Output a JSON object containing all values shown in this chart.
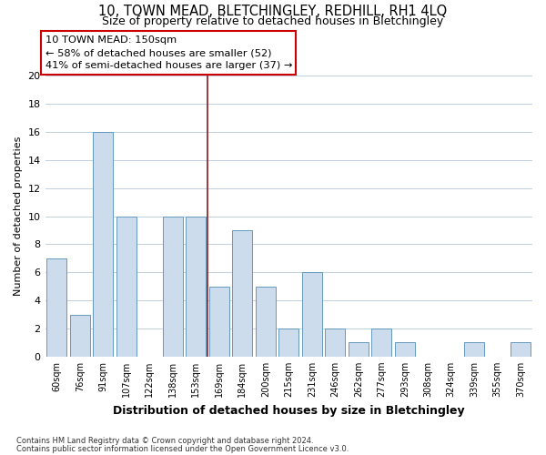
{
  "title": "10, TOWN MEAD, BLETCHINGLEY, REDHILL, RH1 4LQ",
  "subtitle": "Size of property relative to detached houses in Bletchingley",
  "xlabel": "Distribution of detached houses by size in Bletchingley",
  "ylabel": "Number of detached properties",
  "bar_color": "#ccdcec",
  "bar_edgecolor": "#6699bb",
  "categories": [
    "60sqm",
    "76sqm",
    "91sqm",
    "107sqm",
    "122sqm",
    "138sqm",
    "153sqm",
    "169sqm",
    "184sqm",
    "200sqm",
    "215sqm",
    "231sqm",
    "246sqm",
    "262sqm",
    "277sqm",
    "293sqm",
    "308sqm",
    "324sqm",
    "339sqm",
    "355sqm",
    "370sqm"
  ],
  "values": [
    7,
    3,
    16,
    10,
    0,
    10,
    10,
    5,
    9,
    5,
    2,
    6,
    2,
    1,
    2,
    1,
    0,
    0,
    1,
    0,
    1
  ],
  "ylim": [
    0,
    20
  ],
  "yticks": [
    0,
    2,
    4,
    6,
    8,
    10,
    12,
    14,
    16,
    18,
    20
  ],
  "vline_x": 6.5,
  "vline_color": "#8b1a1a",
  "annotation_text": "10 TOWN MEAD: 150sqm\n← 58% of detached houses are smaller (52)\n41% of semi-detached houses are larger (37) →",
  "annotation_box_edgecolor": "#cc0000",
  "annotation_box_facecolor": "#ffffff",
  "footnote1": "Contains HM Land Registry data © Crown copyright and database right 2024.",
  "footnote2": "Contains public sector information licensed under the Open Government Licence v3.0.",
  "background_color": "#ffffff",
  "grid_color": "#c0d0e0",
  "title_fontsize": 10.5,
  "subtitle_fontsize": 9,
  "ylabel_fontsize": 8,
  "xlabel_fontsize": 9
}
